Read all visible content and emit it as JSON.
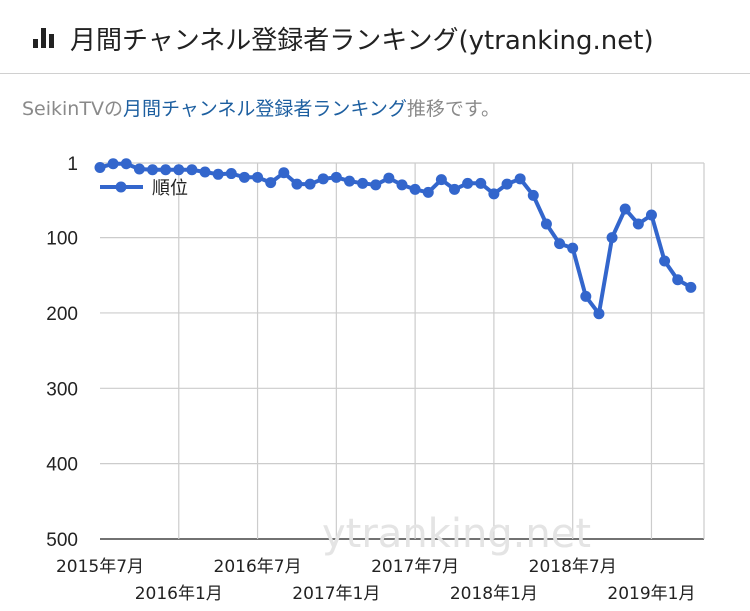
{
  "header": {
    "title": "月間チャンネル登録者ランキング(ytranking.net)",
    "icon": "bar-chart-icon"
  },
  "description": {
    "prefix": "SeikinTVの",
    "link": "月間チャンネル登録者ランキング",
    "suffix": "推移です。"
  },
  "watermark": "ytranking.net",
  "chart_data": {
    "type": "line",
    "title": "",
    "xlabel": "",
    "ylabel": "",
    "ylim": [
      1,
      500
    ],
    "y_reversed": true,
    "yticks": [
      1,
      100,
      200,
      300,
      400,
      500
    ],
    "x_tick_labels": [
      "2015年7月",
      "2016年1月",
      "2016年7月",
      "2017年1月",
      "2017年7月",
      "2018年1月",
      "2018年7月",
      "2019年1月"
    ],
    "x_start": "2015年7月",
    "grid": true,
    "legend_position": "top-left",
    "series": [
      {
        "name": "順位",
        "color": "#3366cc",
        "values": [
          7,
          2,
          2,
          9,
          10,
          10,
          10,
          10,
          13,
          16,
          15,
          20,
          20,
          27,
          14,
          29,
          29,
          22,
          20,
          25,
          28,
          30,
          21,
          30,
          36,
          40,
          23,
          36,
          28,
          28,
          42,
          29,
          22,
          44,
          82,
          108,
          114,
          178,
          201,
          100,
          62,
          82,
          70,
          131,
          156,
          166
        ]
      }
    ]
  }
}
